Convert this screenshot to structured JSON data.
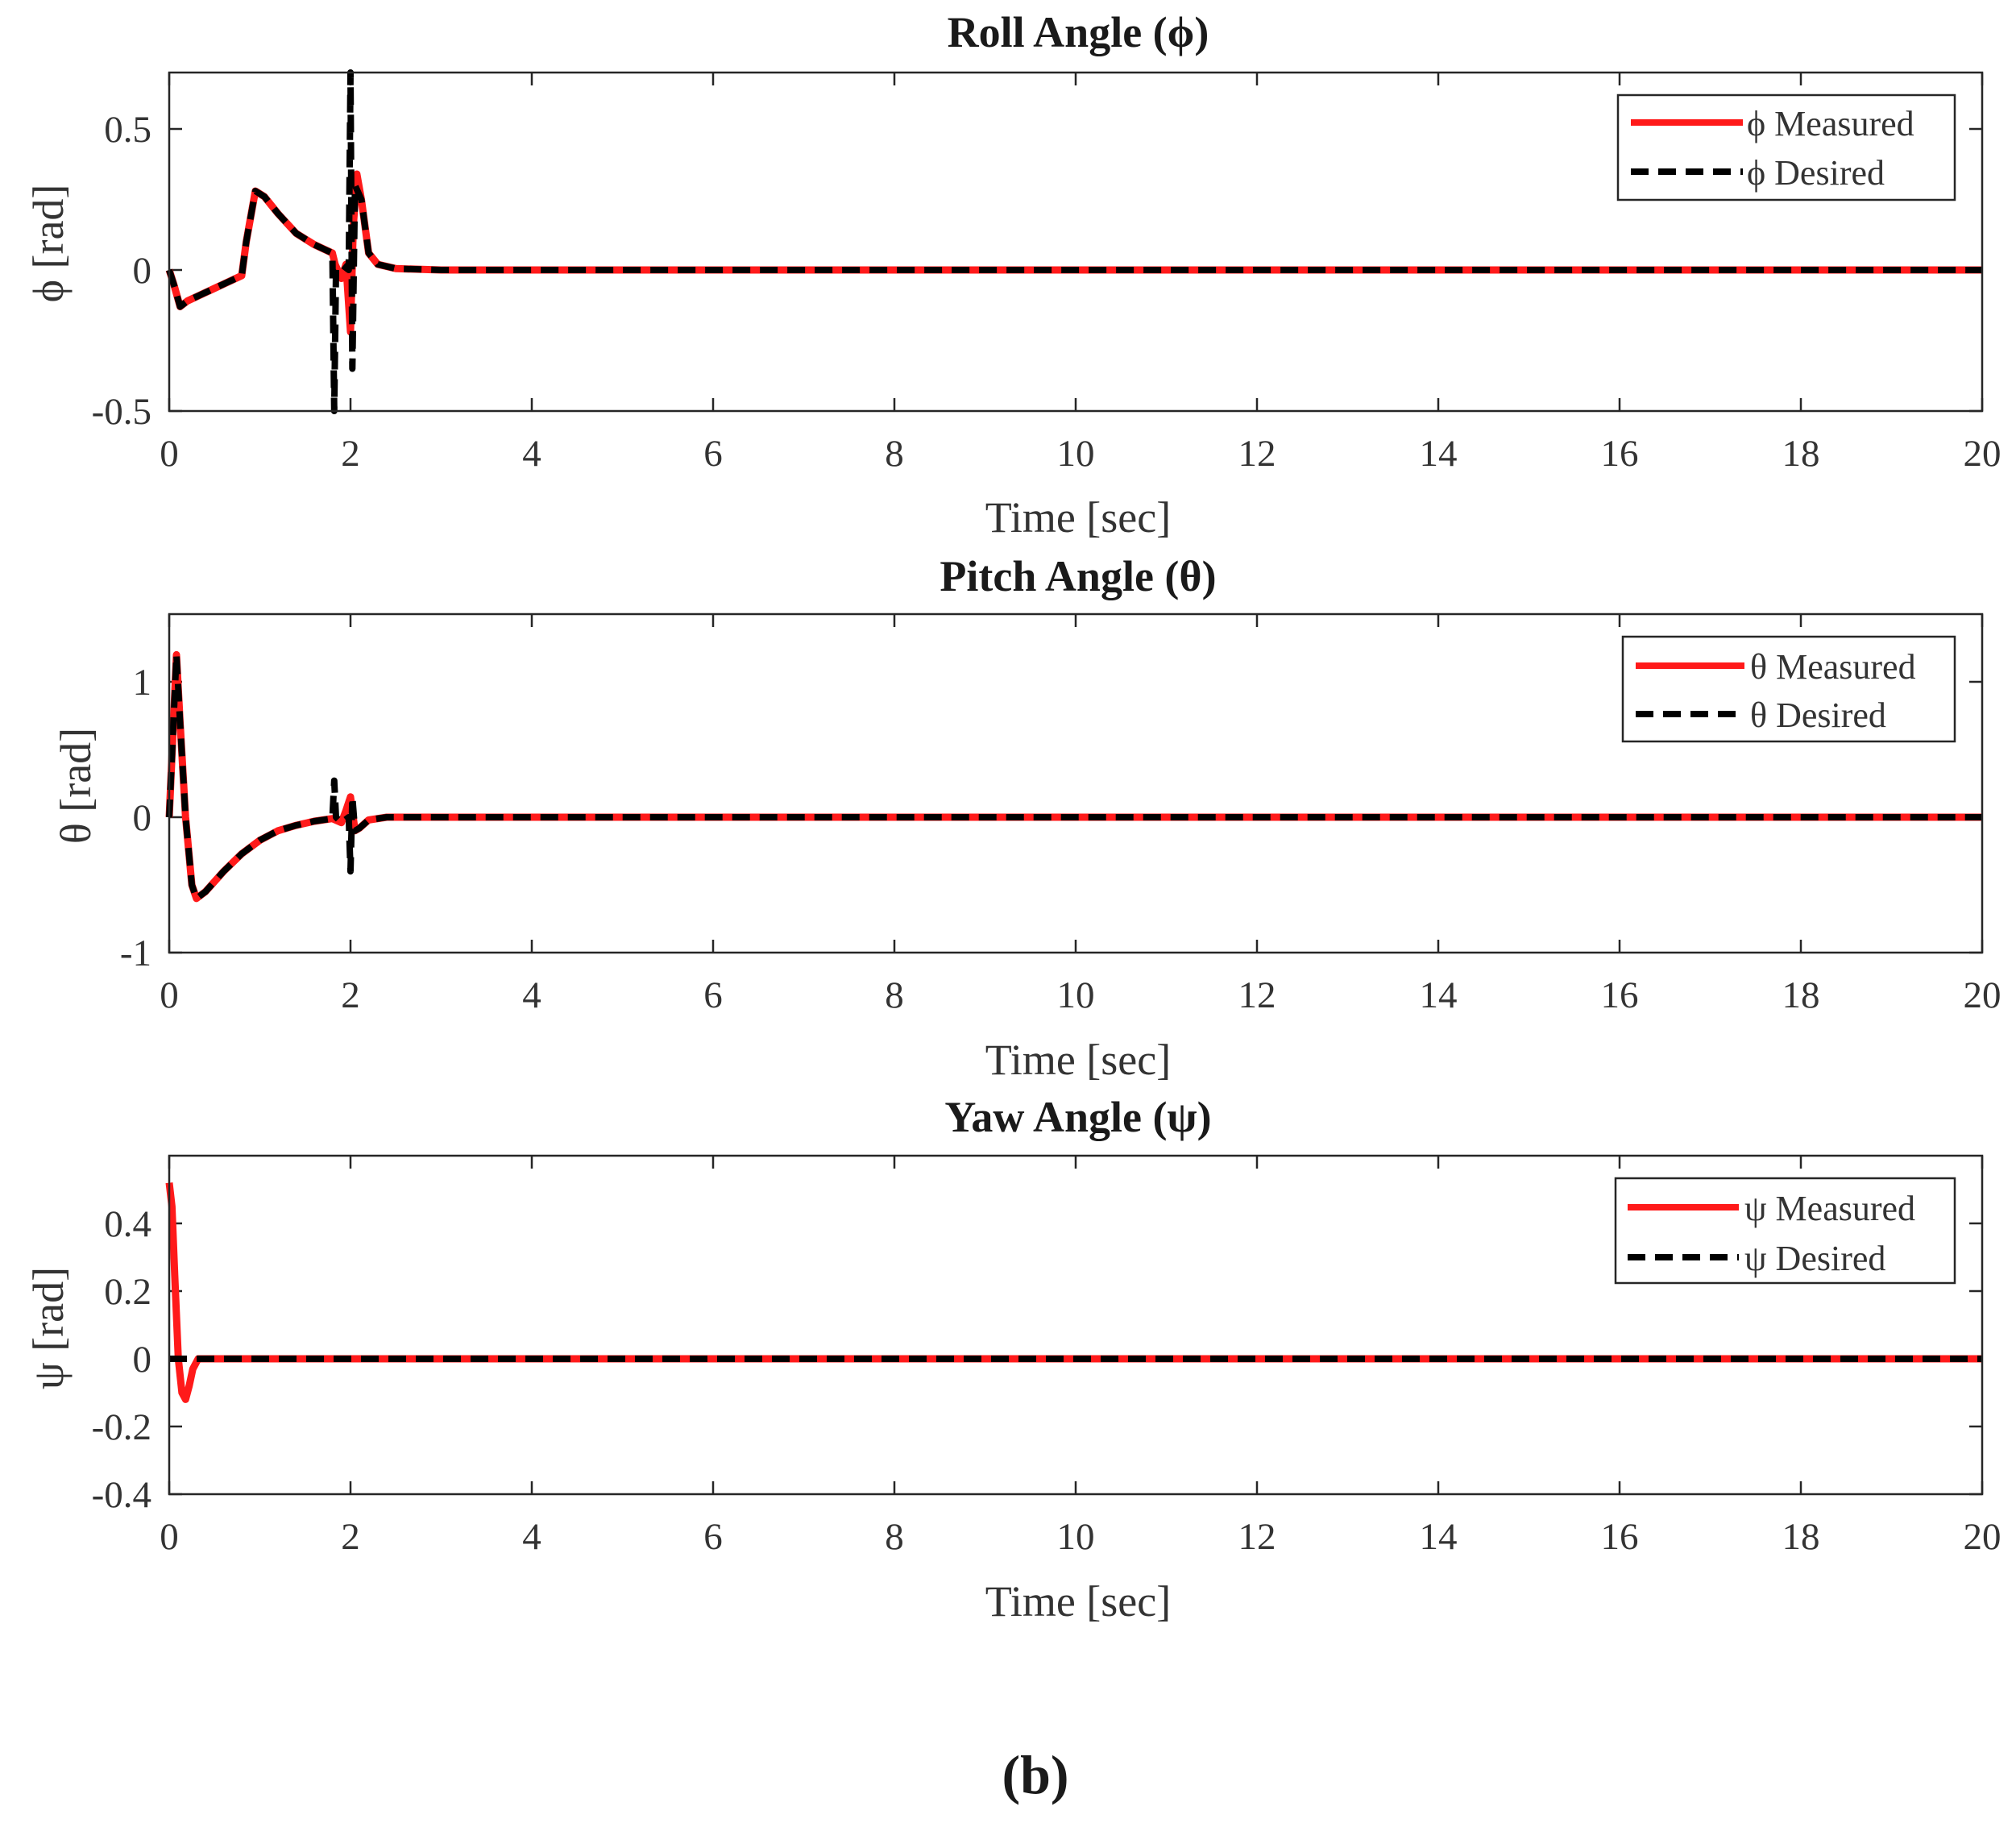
{
  "figure_label": "(b)",
  "colors": {
    "measured": "#ff1a1a",
    "desired": "#000000",
    "axis": "#262626"
  },
  "chart_data": [
    {
      "type": "line",
      "title": "Roll Angle (ϕ)",
      "xlabel": "Time [sec]",
      "ylabel": "ϕ [rad]",
      "xlim": [
        0,
        20
      ],
      "ylim": [
        -0.5,
        0.7
      ],
      "xticks": [
        0,
        2,
        4,
        6,
        8,
        10,
        12,
        14,
        16,
        18,
        20
      ],
      "xtick_labels": [
        "0",
        "2",
        "4",
        "6",
        "8",
        "10",
        "12",
        "14",
        "16",
        "18",
        "20"
      ],
      "yticks": [
        -0.5,
        0,
        0.5
      ],
      "ytick_labels": [
        "-0.5",
        "0",
        "0.5"
      ],
      "legend": [
        "ϕ Measured",
        "ϕ Desired"
      ],
      "legend_position": "top-right",
      "series": [
        {
          "name": "ϕ Measured",
          "style": "solid",
          "x": [
            0,
            0.05,
            0.12,
            0.2,
            0.4,
            0.6,
            0.8,
            0.85,
            0.95,
            1.05,
            1.2,
            1.4,
            1.6,
            1.8,
            1.83,
            1.9,
            1.95,
            2.0,
            2.03,
            2.07,
            2.12,
            2.2,
            2.3,
            2.5,
            3.0,
            4.0,
            20
          ],
          "y": [
            0,
            -0.05,
            -0.13,
            -0.11,
            -0.08,
            -0.05,
            -0.02,
            0.1,
            0.28,
            0.26,
            0.2,
            0.13,
            0.09,
            0.06,
            0.02,
            -0.03,
            0.02,
            -0.22,
            0.15,
            0.34,
            0.25,
            0.06,
            0.02,
            0.005,
            0,
            0,
            0
          ]
        },
        {
          "name": "ϕ Desired",
          "style": "dashed",
          "x": [
            0,
            0.05,
            0.12,
            0.2,
            0.4,
            0.6,
            0.8,
            0.85,
            0.95,
            1.05,
            1.2,
            1.4,
            1.6,
            1.8,
            1.82,
            1.84,
            1.9,
            1.98,
            2.0,
            2.02,
            2.05,
            2.12,
            2.2,
            2.3,
            2.5,
            3.0,
            4.0,
            20
          ],
          "y": [
            0,
            -0.05,
            -0.13,
            -0.11,
            -0.08,
            -0.05,
            -0.02,
            0.1,
            0.28,
            0.26,
            0.2,
            0.13,
            0.09,
            0.06,
            -0.5,
            0.0,
            0.02,
            0.0,
            0.7,
            -0.35,
            0.3,
            0.25,
            0.06,
            0.02,
            0.005,
            0,
            0,
            0
          ]
        }
      ]
    },
    {
      "type": "line",
      "title": "Pitch Angle (θ)",
      "xlabel": "Time [sec]",
      "ylabel": "θ [rad]",
      "xlim": [
        0,
        20
      ],
      "ylim": [
        -1,
        1.5
      ],
      "xticks": [
        0,
        2,
        4,
        6,
        8,
        10,
        12,
        14,
        16,
        18,
        20
      ],
      "xtick_labels": [
        "0",
        "2",
        "4",
        "6",
        "8",
        "10",
        "12",
        "14",
        "16",
        "18",
        "20"
      ],
      "yticks": [
        -1,
        0,
        1
      ],
      "ytick_labels": [
        "-1",
        "0",
        "1"
      ],
      "legend": [
        "θ Measured",
        "θ Desired"
      ],
      "legend_position": "top-right",
      "series": [
        {
          "name": "θ Measured",
          "style": "solid",
          "x": [
            0,
            0.04,
            0.08,
            0.12,
            0.18,
            0.25,
            0.3,
            0.4,
            0.6,
            0.8,
            1.0,
            1.2,
            1.4,
            1.6,
            1.8,
            1.9,
            1.95,
            2.0,
            2.05,
            2.1,
            2.2,
            2.4,
            3.0,
            20
          ],
          "y": [
            0,
            0.6,
            1.2,
            0.7,
            0.0,
            -0.5,
            -0.6,
            -0.55,
            -0.4,
            -0.27,
            -0.17,
            -0.1,
            -0.06,
            -0.03,
            -0.01,
            -0.04,
            0.05,
            0.15,
            -0.1,
            -0.08,
            -0.02,
            0,
            0,
            0
          ]
        },
        {
          "name": "θ Desired",
          "style": "dashed",
          "x": [
            0,
            0.04,
            0.08,
            0.12,
            0.18,
            0.25,
            0.3,
            0.4,
            0.6,
            0.8,
            1.0,
            1.2,
            1.4,
            1.6,
            1.8,
            1.82,
            1.84,
            1.9,
            1.98,
            2.0,
            2.02,
            2.05,
            2.1,
            2.2,
            2.4,
            3.0,
            20
          ],
          "y": [
            0,
            0.6,
            1.2,
            0.7,
            0.0,
            -0.5,
            -0.6,
            -0.55,
            -0.4,
            -0.27,
            -0.17,
            -0.1,
            -0.06,
            -0.03,
            -0.01,
            0.27,
            0.0,
            -0.04,
            0.0,
            -0.4,
            0.15,
            -0.1,
            -0.08,
            -0.02,
            0,
            0,
            0
          ]
        }
      ]
    },
    {
      "type": "line",
      "title": "Yaw Angle (ψ)",
      "xlabel": "Time [sec]",
      "ylabel": "ψ [rad]",
      "xlim": [
        0,
        20
      ],
      "ylim": [
        -0.4,
        0.6
      ],
      "xticks": [
        0,
        2,
        4,
        6,
        8,
        10,
        12,
        14,
        16,
        18,
        20
      ],
      "xtick_labels": [
        "0",
        "2",
        "4",
        "6",
        "8",
        "10",
        "12",
        "14",
        "16",
        "18",
        "20"
      ],
      "yticks": [
        -0.4,
        -0.2,
        0,
        0.2,
        0.4
      ],
      "ytick_labels": [
        "-0.4",
        "-0.2",
        "0",
        "0.2",
        "0.4"
      ],
      "legend": [
        "ψ Measured",
        "ψ Desired"
      ],
      "legend_position": "top-right",
      "series": [
        {
          "name": "ψ Measured",
          "style": "solid",
          "x": [
            0,
            0.03,
            0.06,
            0.1,
            0.14,
            0.18,
            0.22,
            0.26,
            0.32,
            0.4,
            20
          ],
          "y": [
            0.52,
            0.45,
            0.25,
            0.0,
            -0.1,
            -0.12,
            -0.08,
            -0.03,
            0.0,
            0,
            0
          ]
        },
        {
          "name": "ψ Desired",
          "style": "dashed",
          "x": [
            0,
            20
          ],
          "y": [
            0,
            0
          ]
        }
      ]
    }
  ]
}
